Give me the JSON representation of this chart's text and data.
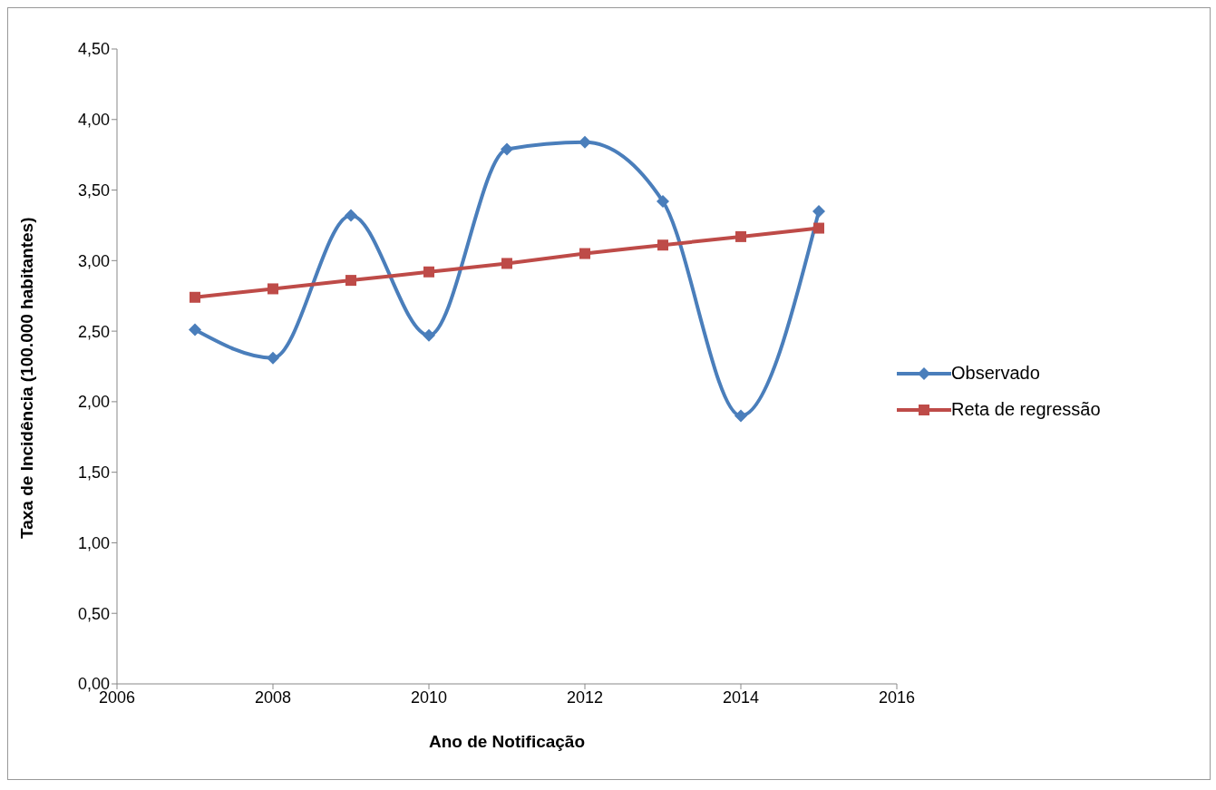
{
  "chart_data": {
    "type": "line",
    "xlabel": "Ano de Notificação",
    "ylabel": "Taxa de Incidência (100.000 habitantes)",
    "x": [
      2007,
      2008,
      2009,
      2010,
      2011,
      2012,
      2013,
      2014,
      2015
    ],
    "series": [
      {
        "name": "Observado",
        "color": "#4a7ebb",
        "marker": "diamond",
        "values": [
          2.51,
          2.31,
          3.32,
          2.47,
          3.79,
          3.84,
          3.42,
          1.9,
          3.35
        ]
      },
      {
        "name": "Reta de regressão",
        "color": "#be4b48",
        "marker": "square",
        "values": [
          2.74,
          2.8,
          2.86,
          2.92,
          2.98,
          3.05,
          3.11,
          3.17,
          3.23
        ]
      }
    ],
    "xlim": [
      2006,
      2016
    ],
    "xticks": [
      2006,
      2008,
      2010,
      2012,
      2014,
      2016
    ],
    "ylim": [
      0,
      4.5
    ],
    "yticks": [
      {
        "value": 0,
        "label": "0,00"
      },
      {
        "value": 0.5,
        "label": "0,50"
      },
      {
        "value": 1,
        "label": "1,00"
      },
      {
        "value": 1.5,
        "label": "1,50"
      },
      {
        "value": 2,
        "label": "2,00"
      },
      {
        "value": 2.5,
        "label": "2,50"
      },
      {
        "value": 3,
        "label": "3,00"
      },
      {
        "value": 3.5,
        "label": "3,50"
      },
      {
        "value": 4,
        "label": "4,00"
      },
      {
        "value": 4.5,
        "label": "4,50"
      }
    ],
    "grid": false,
    "legend": "right",
    "line_style": "solid"
  }
}
